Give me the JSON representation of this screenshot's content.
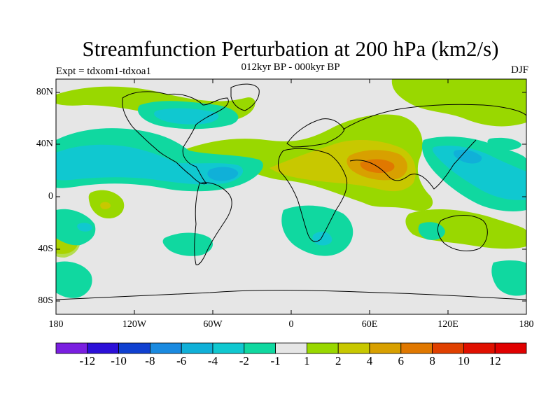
{
  "title": "Streamfunction Perturbation at 200 hPa (km2/s)",
  "left_label": "Expt = tdxom1-tdxoa1",
  "center_label": "012kyr BP - 000kyr BP",
  "right_label": "DJF",
  "map": {
    "projection": "cylindrical equidistant",
    "lon_range": [
      -180,
      180
    ],
    "lat_range": [
      -90,
      90
    ],
    "lat_ticks": [
      "80N",
      "40N",
      "0",
      "40S",
      "80S"
    ],
    "lon_ticks": [
      "180",
      "120W",
      "60W",
      "0",
      "60E",
      "120E",
      "180"
    ],
    "background_color": "#e6e6e6",
    "features": [
      {
        "name": "positive-anomaly-asia-middle-east",
        "level": 6,
        "region": "Arabian Peninsula / Iran / India"
      },
      {
        "name": "positive-anomaly-north-america-north",
        "level": 2,
        "region": "Northern Canada / Greenland"
      },
      {
        "name": "negative-anomaly-tropical-pacific-east",
        "level": -2,
        "region": "Eastern tropical Pacific / Caribbean"
      },
      {
        "name": "negative-anomaly-south-atlantic",
        "level": -2,
        "region": "South Atlantic / southern Africa"
      },
      {
        "name": "positive-anomaly-australia",
        "level": 2,
        "region": "Australia / South Pacific"
      },
      {
        "name": "negative-anomaly-west-pacific",
        "level": -2,
        "region": "Western Pacific"
      }
    ]
  },
  "colorbar": {
    "labels": [
      "-12",
      "-10",
      "-8",
      "-6",
      "-4",
      "-2",
      "-1",
      "1",
      "2",
      "4",
      "6",
      "8",
      "10",
      "12"
    ],
    "colors": [
      "#7a1fe0",
      "#2c10d8",
      "#1040d0",
      "#1a8ae0",
      "#10b0d8",
      "#10c8d0",
      "#10d8a0",
      "#e6e6e6",
      "#99d800",
      "#c8c800",
      "#d8a000",
      "#e07800",
      "#e04000",
      "#e01000",
      "#e00000"
    ]
  }
}
